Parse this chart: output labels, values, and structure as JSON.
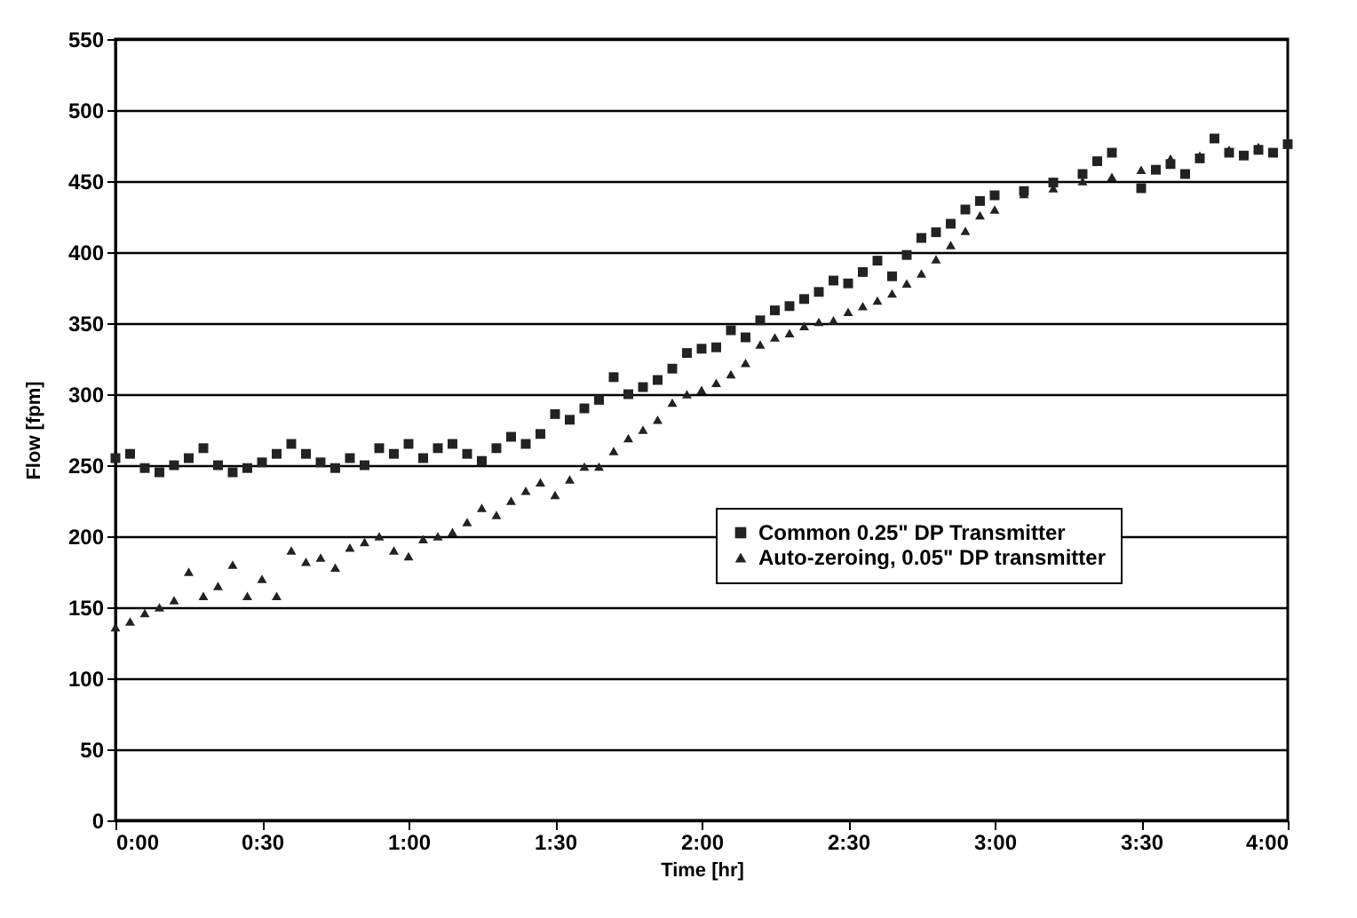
{
  "chart_data": {
    "type": "scatter",
    "xlabel": "Time [hr]",
    "ylabel": "Flow [fpm]",
    "xlim": [
      0,
      4
    ],
    "ylim": [
      0,
      550
    ],
    "xticks": [
      {
        "value": 0,
        "label": "0:00"
      },
      {
        "value": 0.5,
        "label": "0:30"
      },
      {
        "value": 1,
        "label": "1:00"
      },
      {
        "value": 1.5,
        "label": "1:30"
      },
      {
        "value": 2,
        "label": "2:00"
      },
      {
        "value": 2.5,
        "label": "2:30"
      },
      {
        "value": 3,
        "label": "3:00"
      },
      {
        "value": 3.5,
        "label": "3:30"
      },
      {
        "value": 4,
        "label": "4:00"
      }
    ],
    "yticks": [
      0,
      50,
      100,
      150,
      200,
      250,
      300,
      350,
      400,
      450,
      500,
      550
    ],
    "grid": "y",
    "legend": "right",
    "series": [
      {
        "name": "Common 0.25\" DP Transmitter",
        "color": "#222222",
        "marker": "square",
        "x": [
          0,
          0.05,
          0.1,
          0.15,
          0.2,
          0.25,
          0.3,
          0.35,
          0.4,
          0.45,
          0.5,
          0.55,
          0.6,
          0.65,
          0.7,
          0.75,
          0.8,
          0.85,
          0.9,
          0.95,
          1.0,
          1.05,
          1.1,
          1.15,
          1.2,
          1.25,
          1.3,
          1.35,
          1.4,
          1.45,
          1.5,
          1.55,
          1.6,
          1.65,
          1.7,
          1.75,
          1.8,
          1.85,
          1.9,
          1.95,
          2.0,
          2.05,
          2.1,
          2.15,
          2.2,
          2.25,
          2.3,
          2.35,
          2.4,
          2.45,
          2.5,
          2.55,
          2.6,
          2.65,
          2.7,
          2.75,
          2.8,
          2.85,
          2.9,
          2.95,
          3.0,
          3.1,
          3.2,
          3.3,
          3.35,
          3.4,
          3.5,
          3.55,
          3.6,
          3.65,
          3.7,
          3.75,
          3.8,
          3.85,
          3.9,
          3.95,
          4.0
        ],
        "values": [
          255,
          258,
          248,
          245,
          250,
          255,
          262,
          250,
          245,
          248,
          252,
          258,
          265,
          258,
          252,
          248,
          255,
          250,
          262,
          258,
          265,
          255,
          262,
          265,
          258,
          253,
          262,
          270,
          265,
          272,
          286,
          282,
          290,
          296,
          312,
          300,
          305,
          310,
          318,
          329,
          332,
          333,
          345,
          340,
          352,
          359,
          362,
          367,
          372,
          380,
          378,
          386,
          394,
          383,
          398,
          410,
          414,
          420,
          430,
          436,
          440,
          443,
          449,
          455,
          464,
          470,
          445,
          458,
          462,
          455,
          466,
          480,
          470,
          468,
          472,
          470,
          476
        ]
      },
      {
        "name": "Auto-zeroing, 0.05\" DP transmitter",
        "color": "#222222",
        "marker": "triangle",
        "x": [
          0,
          0.05,
          0.1,
          0.15,
          0.2,
          0.25,
          0.3,
          0.35,
          0.4,
          0.45,
          0.5,
          0.55,
          0.6,
          0.65,
          0.7,
          0.75,
          0.8,
          0.85,
          0.9,
          0.95,
          1.0,
          1.05,
          1.1,
          1.15,
          1.2,
          1.25,
          1.3,
          1.35,
          1.4,
          1.45,
          1.5,
          1.55,
          1.6,
          1.65,
          1.7,
          1.75,
          1.8,
          1.85,
          1.9,
          1.95,
          2.0,
          2.05,
          2.1,
          2.15,
          2.2,
          2.25,
          2.3,
          2.35,
          2.4,
          2.45,
          2.5,
          2.55,
          2.6,
          2.65,
          2.7,
          2.75,
          2.8,
          2.85,
          2.9,
          2.95,
          3.0,
          3.1,
          3.2,
          3.3,
          3.4,
          3.5,
          3.6,
          3.7,
          3.8,
          3.9,
          4.0
        ],
        "values": [
          136,
          140,
          146,
          150,
          155,
          175,
          158,
          165,
          180,
          158,
          170,
          158,
          190,
          182,
          185,
          178,
          192,
          196,
          200,
          190,
          186,
          198,
          200,
          203,
          210,
          220,
          215,
          225,
          232,
          238,
          229,
          240,
          249,
          249,
          260,
          269,
          275,
          282,
          294,
          300,
          303,
          308,
          314,
          322,
          335,
          340,
          343,
          348,
          351,
          352,
          358,
          362,
          366,
          371,
          378,
          385,
          395,
          405,
          415,
          426,
          430,
          441,
          445,
          450,
          453,
          458,
          466,
          468,
          472,
          474,
          478
        ]
      }
    ]
  }
}
